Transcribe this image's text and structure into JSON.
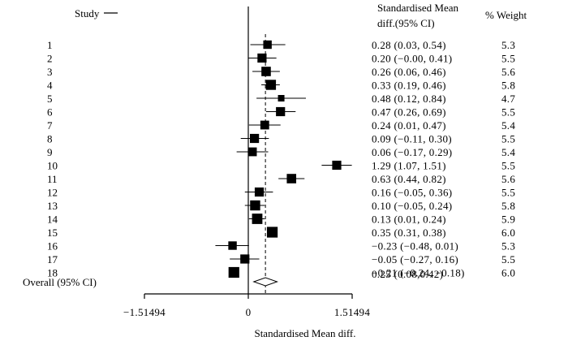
{
  "chart_data": {
    "type": "forest",
    "header": {
      "study_label": "Study",
      "effect_label_line1": "Standardised Mean",
      "effect_label_line2": "diff.(95% CI)",
      "weight_label": "% Weight"
    },
    "studies": [
      {
        "id": "1",
        "est": 0.28,
        "lo": 0.03,
        "hi": 0.54,
        "ci_text": "0.28  (0.03,   0.54)",
        "weight": "5.3"
      },
      {
        "id": "2",
        "est": 0.2,
        "lo": -0.0,
        "hi": 0.41,
        "ci_text": "0.20  (−0.00,  0.41)",
        "weight": "5.5"
      },
      {
        "id": "3",
        "est": 0.26,
        "lo": 0.06,
        "hi": 0.46,
        "ci_text": "0.26  (0.06,   0.46)",
        "weight": "5.6"
      },
      {
        "id": "4",
        "est": 0.33,
        "lo": 0.19,
        "hi": 0.46,
        "ci_text": "0.33  (0.19,   0.46)",
        "weight": "5.8"
      },
      {
        "id": "5",
        "est": 0.48,
        "lo": 0.12,
        "hi": 0.84,
        "ci_text": "0.48  (0.12,   0.84)",
        "weight": "4.7"
      },
      {
        "id": "6",
        "est": 0.47,
        "lo": 0.26,
        "hi": 0.69,
        "ci_text": "0.47  (0.26,   0.69)",
        "weight": "5.5"
      },
      {
        "id": "7",
        "est": 0.24,
        "lo": 0.01,
        "hi": 0.47,
        "ci_text": "0.24  (0.01,   0.47)",
        "weight": "5.4"
      },
      {
        "id": "8",
        "est": 0.09,
        "lo": -0.11,
        "hi": 0.3,
        "ci_text": "0.09  (−0.11,  0.30)",
        "weight": "5.5"
      },
      {
        "id": "9",
        "est": 0.06,
        "lo": -0.17,
        "hi": 0.29,
        "ci_text": "0.06  (−0.17,  0.29)",
        "weight": "5.4"
      },
      {
        "id": "10",
        "est": 1.29,
        "lo": 1.07,
        "hi": 1.51,
        "ci_text": "1.29  (1.07,   1.51)",
        "weight": "5.5"
      },
      {
        "id": "11",
        "est": 0.63,
        "lo": 0.44,
        "hi": 0.82,
        "ci_text": "0.63  (0.44,   0.82)",
        "weight": "5.6"
      },
      {
        "id": "12",
        "est": 0.16,
        "lo": -0.05,
        "hi": 0.36,
        "ci_text": "0.16  (−0.05,  0.36)",
        "weight": "5.5"
      },
      {
        "id": "13",
        "est": 0.1,
        "lo": -0.05,
        "hi": 0.24,
        "ci_text": "0.10  (−0.05,  0.24)",
        "weight": "5.8"
      },
      {
        "id": "14",
        "est": 0.13,
        "lo": 0.01,
        "hi": 0.24,
        "ci_text": "0.13  (0.01,   0.24)",
        "weight": "5.9"
      },
      {
        "id": "15",
        "est": 0.35,
        "lo": 0.31,
        "hi": 0.38,
        "ci_text": "0.35  (0.31,   0.38)",
        "weight": "6.0"
      },
      {
        "id": "16",
        "est": -0.23,
        "lo": -0.48,
        "hi": 0.01,
        "ci_text": "−0.23  (−0.48,  0.01)",
        "weight": "5.3"
      },
      {
        "id": "17",
        "est": -0.05,
        "lo": -0.27,
        "hi": 0.16,
        "ci_text": "−0.05  (−0.27,  0.16)",
        "weight": "5.5"
      },
      {
        "id": "18",
        "est": -0.21,
        "lo": -0.24,
        "hi": -0.18,
        "ci_text": "−0.21  (−0.24,  −0.18)",
        "weight": "6.0"
      }
    ],
    "overall": {
      "label": "Overall (95% CI)",
      "est": 0.25,
      "lo": 0.08,
      "hi": 0.42,
      "ci_text": "0.25  (0.08,0.42)"
    },
    "xlim": [
      -1.51494,
      1.51494
    ],
    "xticks": [
      -1.51494,
      0,
      1.51494
    ],
    "xtick_labels": [
      "−1.51494",
      "0",
      "1.51494"
    ],
    "xlabel": "Standardised Mean diff.",
    "null_line": 0,
    "colors": {
      "marker": "#000000",
      "line": "#000000"
    }
  }
}
